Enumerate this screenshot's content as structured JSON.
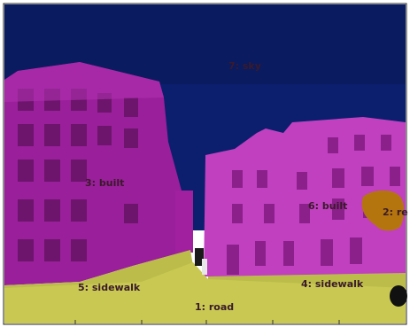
{
  "figure": {
    "segments": [
      {
        "id": "road",
        "label": "1: road",
        "color": "#c8c853"
      },
      {
        "id": "tree",
        "label": "2: re",
        "color": "#b4750e"
      },
      {
        "id": "built-left",
        "label": "3: built",
        "color": "#b020b0"
      },
      {
        "id": "sidewalk-right",
        "label": "4: sidewalk",
        "color": "#c8c853"
      },
      {
        "id": "sidewalk-left",
        "label": "5: sidewalk",
        "color": "#c8c853"
      },
      {
        "id": "built-right",
        "label": "6: built",
        "color": "#c040c0"
      },
      {
        "id": "sky",
        "label": "7: sky",
        "color": "#0a1a6a"
      }
    ]
  }
}
